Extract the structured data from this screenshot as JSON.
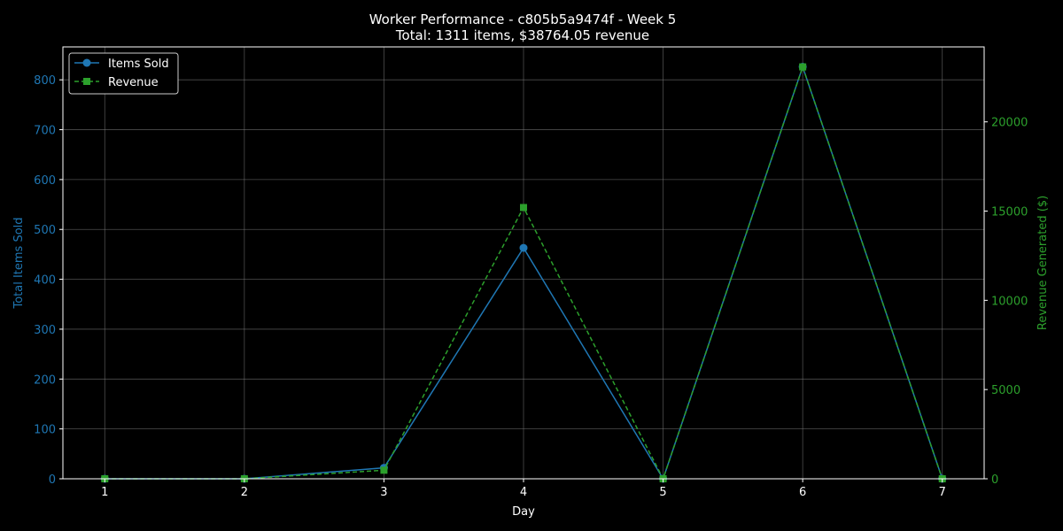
{
  "colors": {
    "background": "#000000",
    "axes": "#ffffff",
    "grid": "#808080",
    "items_series": "#1f77b4",
    "revenue_series": "#2ca02c"
  },
  "chart_data": {
    "type": "line",
    "title": "Worker Performance - c805b5a9474f - Week 5",
    "subtitle": "Total: 1311 items, $38764.05 revenue",
    "xlabel": "Day",
    "ylabel_left": "Total Items Sold",
    "ylabel_right": "Revenue Generated ($)",
    "x": [
      1,
      2,
      3,
      4,
      5,
      6,
      7
    ],
    "xlim": [
      0.7,
      7.3
    ],
    "ylim_left": [
      0,
      866
    ],
    "ylim_right": [
      0,
      24200
    ],
    "xticks": [
      1,
      2,
      3,
      4,
      5,
      6,
      7
    ],
    "yticks_left": [
      0,
      100,
      200,
      300,
      400,
      500,
      600,
      700,
      800
    ],
    "yticks_right": [
      0,
      5000,
      10000,
      15000,
      20000
    ],
    "grid": true,
    "legend_position": "top-left",
    "series": [
      {
        "name": "Items Sold",
        "axis": "left",
        "style": "solid",
        "marker": "circle",
        "values": [
          0,
          0,
          22,
          463,
          0,
          826,
          0
        ]
      },
      {
        "name": "Revenue",
        "axis": "right",
        "style": "dashed",
        "marker": "square",
        "values": [
          0,
          0,
          480,
          15200,
          0,
          23080,
          0
        ]
      }
    ]
  }
}
